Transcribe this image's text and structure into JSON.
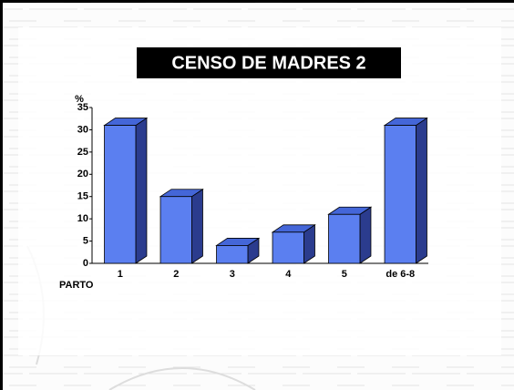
{
  "chart_data": {
    "type": "bar3d",
    "title": "CENSO  DE MADRES 2",
    "y_label": "%",
    "x_label": "PARTO",
    "categories": [
      "1",
      "2",
      "3",
      "4",
      "5",
      "de 6-8"
    ],
    "values": [
      31,
      15,
      4,
      7,
      11,
      31
    ],
    "color": "#5b7ff0",
    "ylim": [
      0,
      35
    ],
    "yticks": [
      0,
      5,
      10,
      15,
      20,
      25,
      30,
      35
    ]
  }
}
